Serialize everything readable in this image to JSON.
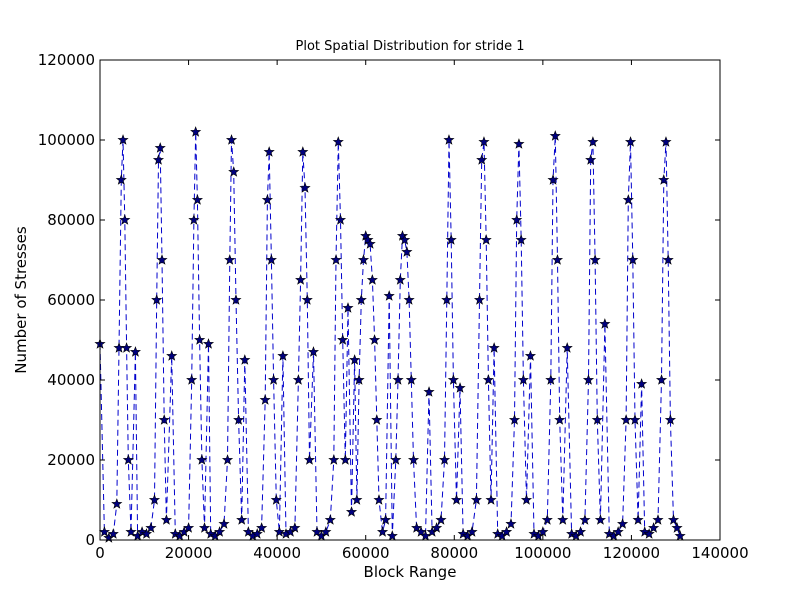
{
  "chart_data": {
    "type": "line",
    "title": "Plot Spatial Distribution for stride 1",
    "xlabel": "Block Range",
    "ylabel": "Number of Stresses",
    "xlim": [
      0,
      140000
    ],
    "ylim": [
      0,
      120000
    ],
    "xticks": [
      0,
      20000,
      40000,
      60000,
      80000,
      100000,
      120000,
      140000
    ],
    "yticks": [
      0,
      20000,
      40000,
      60000,
      80000,
      100000,
      120000
    ],
    "xtick_labels": [
      "0",
      "20000",
      "40000",
      "60000",
      "80000",
      "100000",
      "120000",
      "140000"
    ],
    "ytick_labels": [
      "0",
      "20000",
      "40000",
      "60000",
      "80000",
      "100000",
      "120000"
    ],
    "grid": false,
    "series": [
      {
        "marker": "star",
        "line_style": "dashed",
        "line_color": "#0000cc",
        "marker_color": "#00007f",
        "points": [
          [
            0,
            49000
          ],
          [
            1000,
            2000
          ],
          [
            2000,
            500
          ],
          [
            3000,
            1500
          ],
          [
            3800,
            9000
          ],
          [
            4300,
            48000
          ],
          [
            4800,
            90000
          ],
          [
            5200,
            100000
          ],
          [
            5600,
            80000
          ],
          [
            6000,
            48000
          ],
          [
            6400,
            20000
          ],
          [
            7000,
            2000
          ],
          [
            8000,
            47000
          ],
          [
            8500,
            1000
          ],
          [
            9500,
            2000
          ],
          [
            10500,
            1500
          ],
          [
            11500,
            3000
          ],
          [
            12300,
            10000
          ],
          [
            12800,
            60000
          ],
          [
            13200,
            95000
          ],
          [
            13600,
            98000
          ],
          [
            14000,
            70000
          ],
          [
            14500,
            30000
          ],
          [
            15000,
            5000
          ],
          [
            16200,
            46000
          ],
          [
            17000,
            1500
          ],
          [
            18000,
            1000
          ],
          [
            19000,
            2000
          ],
          [
            20000,
            3000
          ],
          [
            20700,
            40000
          ],
          [
            21200,
            80000
          ],
          [
            21600,
            102000
          ],
          [
            22000,
            85000
          ],
          [
            22500,
            50000
          ],
          [
            23000,
            20000
          ],
          [
            23600,
            3000
          ],
          [
            24500,
            49000
          ],
          [
            25000,
            1500
          ],
          [
            26000,
            1000
          ],
          [
            27000,
            2000
          ],
          [
            28000,
            4000
          ],
          [
            28800,
            20000
          ],
          [
            29300,
            70000
          ],
          [
            29700,
            100000
          ],
          [
            30200,
            92000
          ],
          [
            30700,
            60000
          ],
          [
            31300,
            30000
          ],
          [
            32000,
            5000
          ],
          [
            32700,
            45000
          ],
          [
            33500,
            2000
          ],
          [
            34500,
            1000
          ],
          [
            35500,
            1500
          ],
          [
            36500,
            3000
          ],
          [
            37300,
            35000
          ],
          [
            37800,
            85000
          ],
          [
            38200,
            97000
          ],
          [
            38700,
            70000
          ],
          [
            39200,
            40000
          ],
          [
            39800,
            10000
          ],
          [
            40500,
            2000
          ],
          [
            41300,
            46000
          ],
          [
            42000,
            1500
          ],
          [
            43000,
            2000
          ],
          [
            44000,
            3000
          ],
          [
            44800,
            40000
          ],
          [
            45300,
            65000
          ],
          [
            45800,
            97000
          ],
          [
            46300,
            88000
          ],
          [
            46800,
            60000
          ],
          [
            47300,
            20000
          ],
          [
            48200,
            47000
          ],
          [
            49000,
            2000
          ],
          [
            50000,
            1000
          ],
          [
            51000,
            2000
          ],
          [
            52000,
            5000
          ],
          [
            52800,
            20000
          ],
          [
            53300,
            70000
          ],
          [
            53800,
            99500
          ],
          [
            54300,
            80000
          ],
          [
            54800,
            50000
          ],
          [
            55400,
            20000
          ],
          [
            56000,
            58000
          ],
          [
            56800,
            7000
          ],
          [
            57500,
            45000
          ],
          [
            58000,
            10000
          ],
          [
            58500,
            40000
          ],
          [
            59000,
            60000
          ],
          [
            59500,
            70000
          ],
          [
            60000,
            76000
          ],
          [
            60500,
            75000
          ],
          [
            61000,
            74000
          ],
          [
            61500,
            65000
          ],
          [
            62000,
            50000
          ],
          [
            62500,
            30000
          ],
          [
            63000,
            10000
          ],
          [
            63800,
            2000
          ],
          [
            64500,
            5000
          ],
          [
            65300,
            61000
          ],
          [
            66000,
            1000
          ],
          [
            66800,
            20000
          ],
          [
            67300,
            40000
          ],
          [
            67800,
            65000
          ],
          [
            68300,
            76000
          ],
          [
            68800,
            75000
          ],
          [
            69300,
            72000
          ],
          [
            69800,
            60000
          ],
          [
            70300,
            40000
          ],
          [
            70800,
            20000
          ],
          [
            71500,
            3000
          ],
          [
            72500,
            2000
          ],
          [
            73500,
            1000
          ],
          [
            74300,
            37000
          ],
          [
            75000,
            2000
          ],
          [
            76000,
            3000
          ],
          [
            77000,
            5000
          ],
          [
            77800,
            20000
          ],
          [
            78300,
            60000
          ],
          [
            78800,
            100000
          ],
          [
            79300,
            75000
          ],
          [
            79800,
            40000
          ],
          [
            80500,
            10000
          ],
          [
            81300,
            38000
          ],
          [
            82000,
            1500
          ],
          [
            83000,
            1000
          ],
          [
            84000,
            2000
          ],
          [
            85000,
            10000
          ],
          [
            85700,
            60000
          ],
          [
            86200,
            95000
          ],
          [
            86700,
            99500
          ],
          [
            87200,
            75000
          ],
          [
            87700,
            40000
          ],
          [
            88300,
            10000
          ],
          [
            89000,
            48000
          ],
          [
            89800,
            1500
          ],
          [
            90800,
            1000
          ],
          [
            91800,
            2000
          ],
          [
            92800,
            4000
          ],
          [
            93600,
            30000
          ],
          [
            94100,
            80000
          ],
          [
            94600,
            99000
          ],
          [
            95100,
            75000
          ],
          [
            95600,
            40000
          ],
          [
            96300,
            10000
          ],
          [
            97200,
            46000
          ],
          [
            98000,
            1500
          ],
          [
            99000,
            1000
          ],
          [
            100000,
            2000
          ],
          [
            101000,
            5000
          ],
          [
            101800,
            40000
          ],
          [
            102300,
            90000
          ],
          [
            102800,
            101000
          ],
          [
            103300,
            70000
          ],
          [
            103800,
            30000
          ],
          [
            104500,
            5000
          ],
          [
            105500,
            48000
          ],
          [
            106500,
            1500
          ],
          [
            107500,
            1000
          ],
          [
            108500,
            2000
          ],
          [
            109500,
            5000
          ],
          [
            110300,
            40000
          ],
          [
            110800,
            95000
          ],
          [
            111300,
            99500
          ],
          [
            111800,
            70000
          ],
          [
            112300,
            30000
          ],
          [
            113000,
            5000
          ],
          [
            114000,
            54000
          ],
          [
            115000,
            1500
          ],
          [
            116000,
            1000
          ],
          [
            117000,
            2000
          ],
          [
            118000,
            4000
          ],
          [
            118800,
            30000
          ],
          [
            119300,
            85000
          ],
          [
            119800,
            99500
          ],
          [
            120300,
            70000
          ],
          [
            120800,
            30000
          ],
          [
            121500,
            5000
          ],
          [
            122300,
            39000
          ],
          [
            123000,
            2000
          ],
          [
            124000,
            1500
          ],
          [
            125000,
            3000
          ],
          [
            126000,
            5000
          ],
          [
            126800,
            40000
          ],
          [
            127300,
            90000
          ],
          [
            127800,
            99500
          ],
          [
            128300,
            70000
          ],
          [
            128800,
            30000
          ],
          [
            129500,
            5000
          ],
          [
            130300,
            3000
          ],
          [
            131000,
            1000
          ]
        ]
      }
    ]
  }
}
